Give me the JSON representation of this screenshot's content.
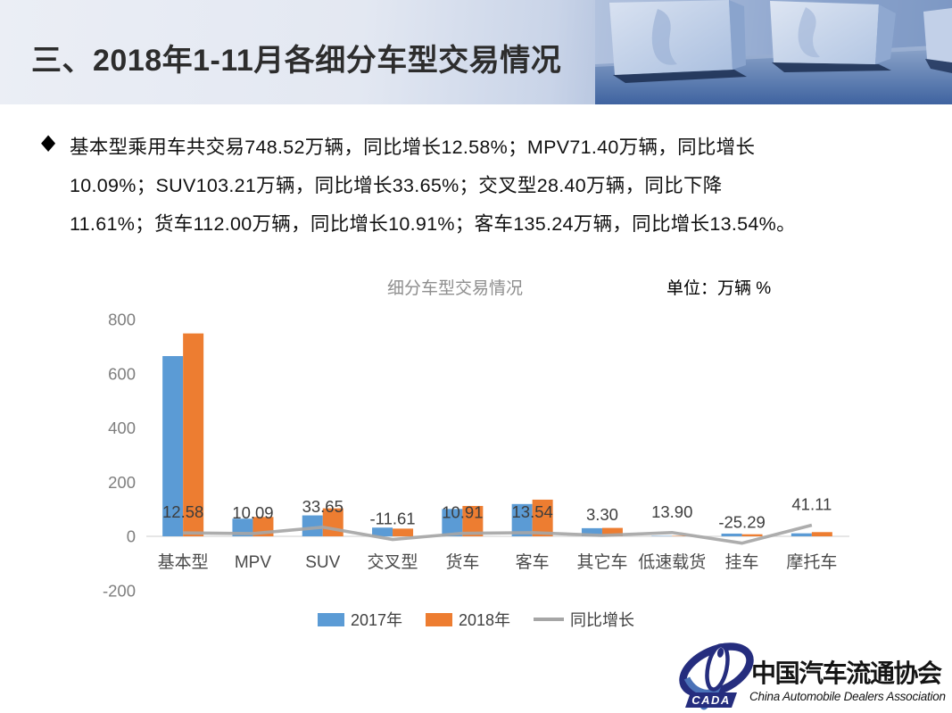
{
  "slide": {
    "title": "三、2018年1-11月各细分车型交易情况",
    "bullet": {
      "marker": "◆",
      "lines": [
        "基本型乘用车共交易748.52万辆，同比增长12.58%；MPV71.40万辆，同比增长",
        "10.09%；SUV103.21万辆，同比增长33.65%；交叉型28.40万辆，同比下降",
        "11.61%；货车112.00万辆，同比增长10.91%；客车135.24万辆，同比增长13.54%。"
      ]
    }
  },
  "chart": {
    "title": "细分车型交易情况",
    "unit_label": "单位：万辆 %"
  },
  "chart_data": {
    "type": "bar+line",
    "title": "细分车型交易情况",
    "categories": [
      "基本型",
      "MPV",
      "SUV",
      "交叉型",
      "货车",
      "客车",
      "其它车",
      "低速载货",
      "挂车",
      "摩托车"
    ],
    "series": [
      {
        "name": "2017年",
        "type": "bar",
        "color": "#5B9BD5",
        "values": [
          664.9,
          64.9,
          77.2,
          32.1,
          101.0,
          119.1,
          30.0,
          1.3,
          10.0,
          11.0
        ]
      },
      {
        "name": "2018年",
        "type": "bar",
        "color": "#ED7D31",
        "values": [
          748.52,
          71.4,
          103.21,
          28.4,
          112.0,
          135.24,
          31.0,
          1.5,
          7.5,
          15.5
        ]
      },
      {
        "name": "同比增长",
        "type": "line",
        "color": "#A6A6A6",
        "data_labels": true,
        "values": [
          12.58,
          10.09,
          33.65,
          -11.61,
          10.91,
          13.54,
          3.3,
          13.9,
          -25.29,
          41.11
        ]
      }
    ],
    "y_ticks": [
      800,
      600,
      400,
      200,
      0,
      -200
    ],
    "ylim": [
      -230,
      890
    ],
    "gridlines": false,
    "legend_position": "bottom",
    "axis_color": "#D6D6D6",
    "tick_label_color": "#7f7f7f",
    "category_label_color": "#4a4a4a",
    "data_label_color": "#3d3d3d"
  },
  "footer_logo": {
    "acronym": "CADA",
    "name_zh": "中国汽车流通协会",
    "name_en": "China Automobile Dealers Association"
  }
}
